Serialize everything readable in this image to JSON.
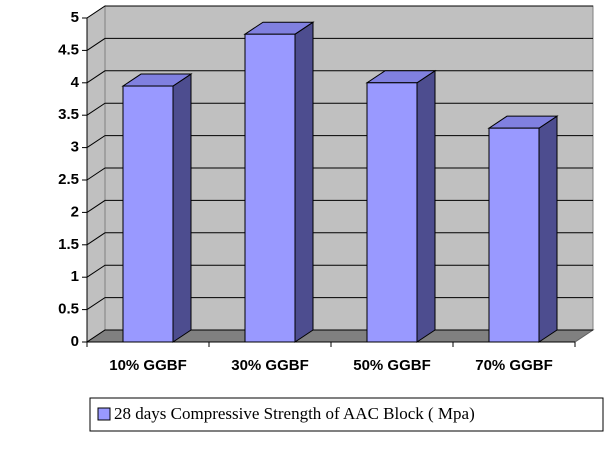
{
  "chart_data": {
    "type": "bar",
    "categories": [
      "10% GGBF",
      "30% GGBF",
      "50% GGBF",
      "70% GGBF"
    ],
    "series": [
      {
        "name": "28 days Compressive Strength of AAC Block ( Mpa)",
        "color": "#9999ff",
        "values": [
          3.95,
          4.75,
          4.0,
          3.3
        ]
      }
    ],
    "ylim": [
      0,
      5
    ],
    "yticks": [
      0,
      0.5,
      1,
      1.5,
      2,
      2.5,
      3,
      3.5,
      4,
      4.5,
      5
    ],
    "grid": true,
    "legend": "bottom"
  }
}
